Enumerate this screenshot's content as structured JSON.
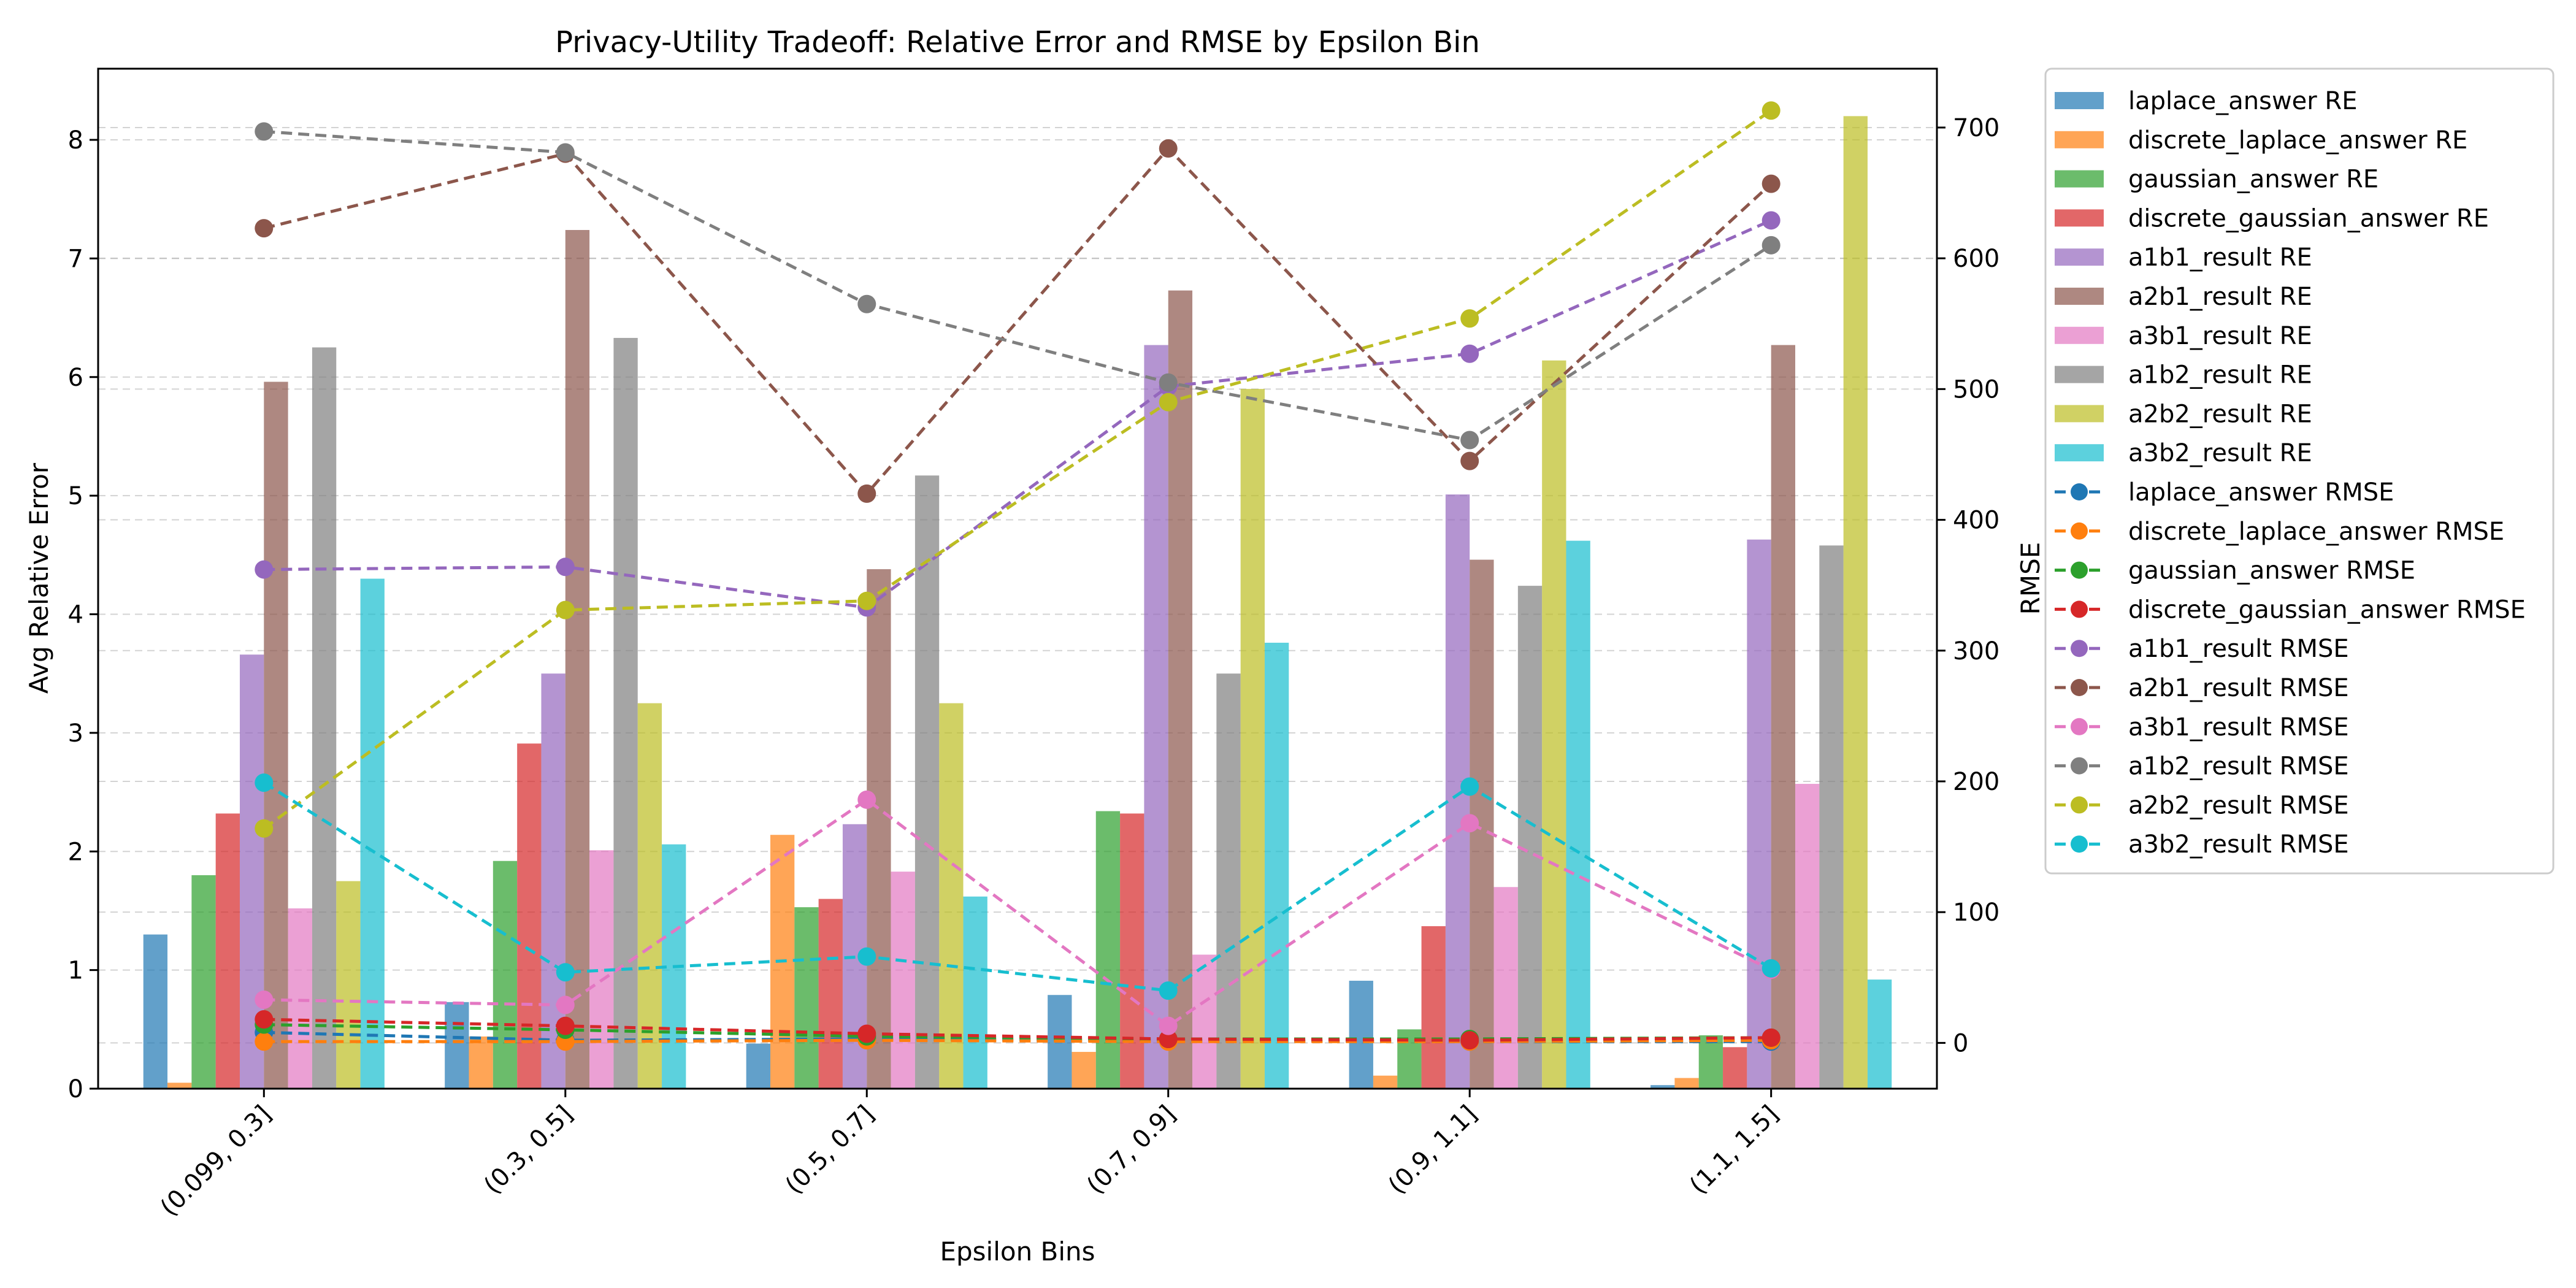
{
  "chart_data": {
    "type": "bar+line",
    "title": "Privacy-Utility Tradeoff: Relative Error and RMSE by Epsilon Bin",
    "xlabel": "Epsilon Bins",
    "ylabel_left": "Avg Relative Error",
    "ylabel_right": "RMSE",
    "categories": [
      "(0.099, 0.3]",
      "(0.3, 0.5]",
      "(0.5, 0.7]",
      "(0.7, 0.9]",
      "(0.9, 1.1]",
      "(1.1, 1.5]"
    ],
    "ylim_left": [
      0,
      8.6
    ],
    "ylim_right": [
      -35,
      745
    ],
    "yticks_left": [
      0,
      1,
      2,
      3,
      4,
      5,
      6,
      7,
      8
    ],
    "yticks_right": [
      0,
      100,
      200,
      300,
      400,
      500,
      600,
      700
    ],
    "grid": true,
    "legend_position": "outside-right-top",
    "bar_series": [
      {
        "name": "laplace_answer RE",
        "color": "#1f77b4",
        "values": [
          1.3,
          0.73,
          0.38,
          0.79,
          0.91,
          0.03
        ]
      },
      {
        "name": "discrete_laplace_answer RE",
        "color": "#ff7f0e",
        "values": [
          0.05,
          0.44,
          2.14,
          0.31,
          0.11,
          0.09
        ]
      },
      {
        "name": "gaussian_answer RE",
        "color": "#2ca02c",
        "values": [
          1.8,
          1.92,
          1.53,
          2.34,
          0.5,
          0.45
        ]
      },
      {
        "name": "discrete_gaussian_answer RE",
        "color": "#d62728",
        "values": [
          2.32,
          2.91,
          1.6,
          2.32,
          1.37,
          0.35
        ]
      },
      {
        "name": "a1b1_result RE",
        "color": "#9467bd",
        "values": [
          3.66,
          3.5,
          2.23,
          6.27,
          5.01,
          4.63
        ]
      },
      {
        "name": "a2b1_result RE",
        "color": "#8c564b",
        "values": [
          5.96,
          7.24,
          4.38,
          6.73,
          4.46,
          6.27
        ]
      },
      {
        "name": "a3b1_result RE",
        "color": "#e377c2",
        "values": [
          1.52,
          2.01,
          1.83,
          1.13,
          1.7,
          2.57
        ]
      },
      {
        "name": "a1b2_result RE",
        "color": "#7f7f7f",
        "values": [
          6.25,
          6.33,
          5.17,
          3.5,
          4.24,
          4.58
        ]
      },
      {
        "name": "a2b2_result RE",
        "color": "#bcbd22",
        "values": [
          1.75,
          3.25,
          3.25,
          5.9,
          6.14,
          8.2
        ]
      },
      {
        "name": "a3b2_result RE",
        "color": "#17becf",
        "values": [
          4.3,
          2.06,
          1.62,
          3.76,
          4.62,
          0.92
        ]
      }
    ],
    "line_series": [
      {
        "name": "laplace_answer RMSE",
        "color": "#1f77b4",
        "values": [
          8,
          2,
          3,
          2,
          1,
          1
        ]
      },
      {
        "name": "discrete_laplace_answer RMSE",
        "color": "#ff7f0e",
        "values": [
          1,
          1,
          2,
          1,
          1,
          2
        ]
      },
      {
        "name": "gaussian_answer RMSE",
        "color": "#2ca02c",
        "values": [
          14,
          10,
          5,
          3,
          3,
          4
        ]
      },
      {
        "name": "discrete_gaussian_answer RMSE",
        "color": "#d62728",
        "values": [
          18,
          13,
          7,
          3,
          2,
          4
        ]
      },
      {
        "name": "a1b1_result RMSE",
        "color": "#9467bd",
        "values": [
          362,
          364,
          333,
          502,
          527,
          629
        ]
      },
      {
        "name": "a2b1_result RMSE",
        "color": "#8c564b",
        "values": [
          623,
          680,
          420,
          684,
          445,
          657
        ]
      },
      {
        "name": "a3b1_result RMSE",
        "color": "#e377c2",
        "values": [
          33,
          29,
          186,
          13,
          168,
          56
        ]
      },
      {
        "name": "a1b2_result RMSE",
        "color": "#7f7f7f",
        "values": [
          697,
          681,
          565,
          505,
          461,
          610
        ]
      },
      {
        "name": "a2b2_result RMSE",
        "color": "#bcbd22",
        "values": [
          164,
          331,
          338,
          490,
          554,
          713
        ]
      },
      {
        "name": "a3b2_result RMSE",
        "color": "#17becf",
        "values": [
          199,
          54,
          66,
          40,
          196,
          57
        ]
      }
    ]
  }
}
